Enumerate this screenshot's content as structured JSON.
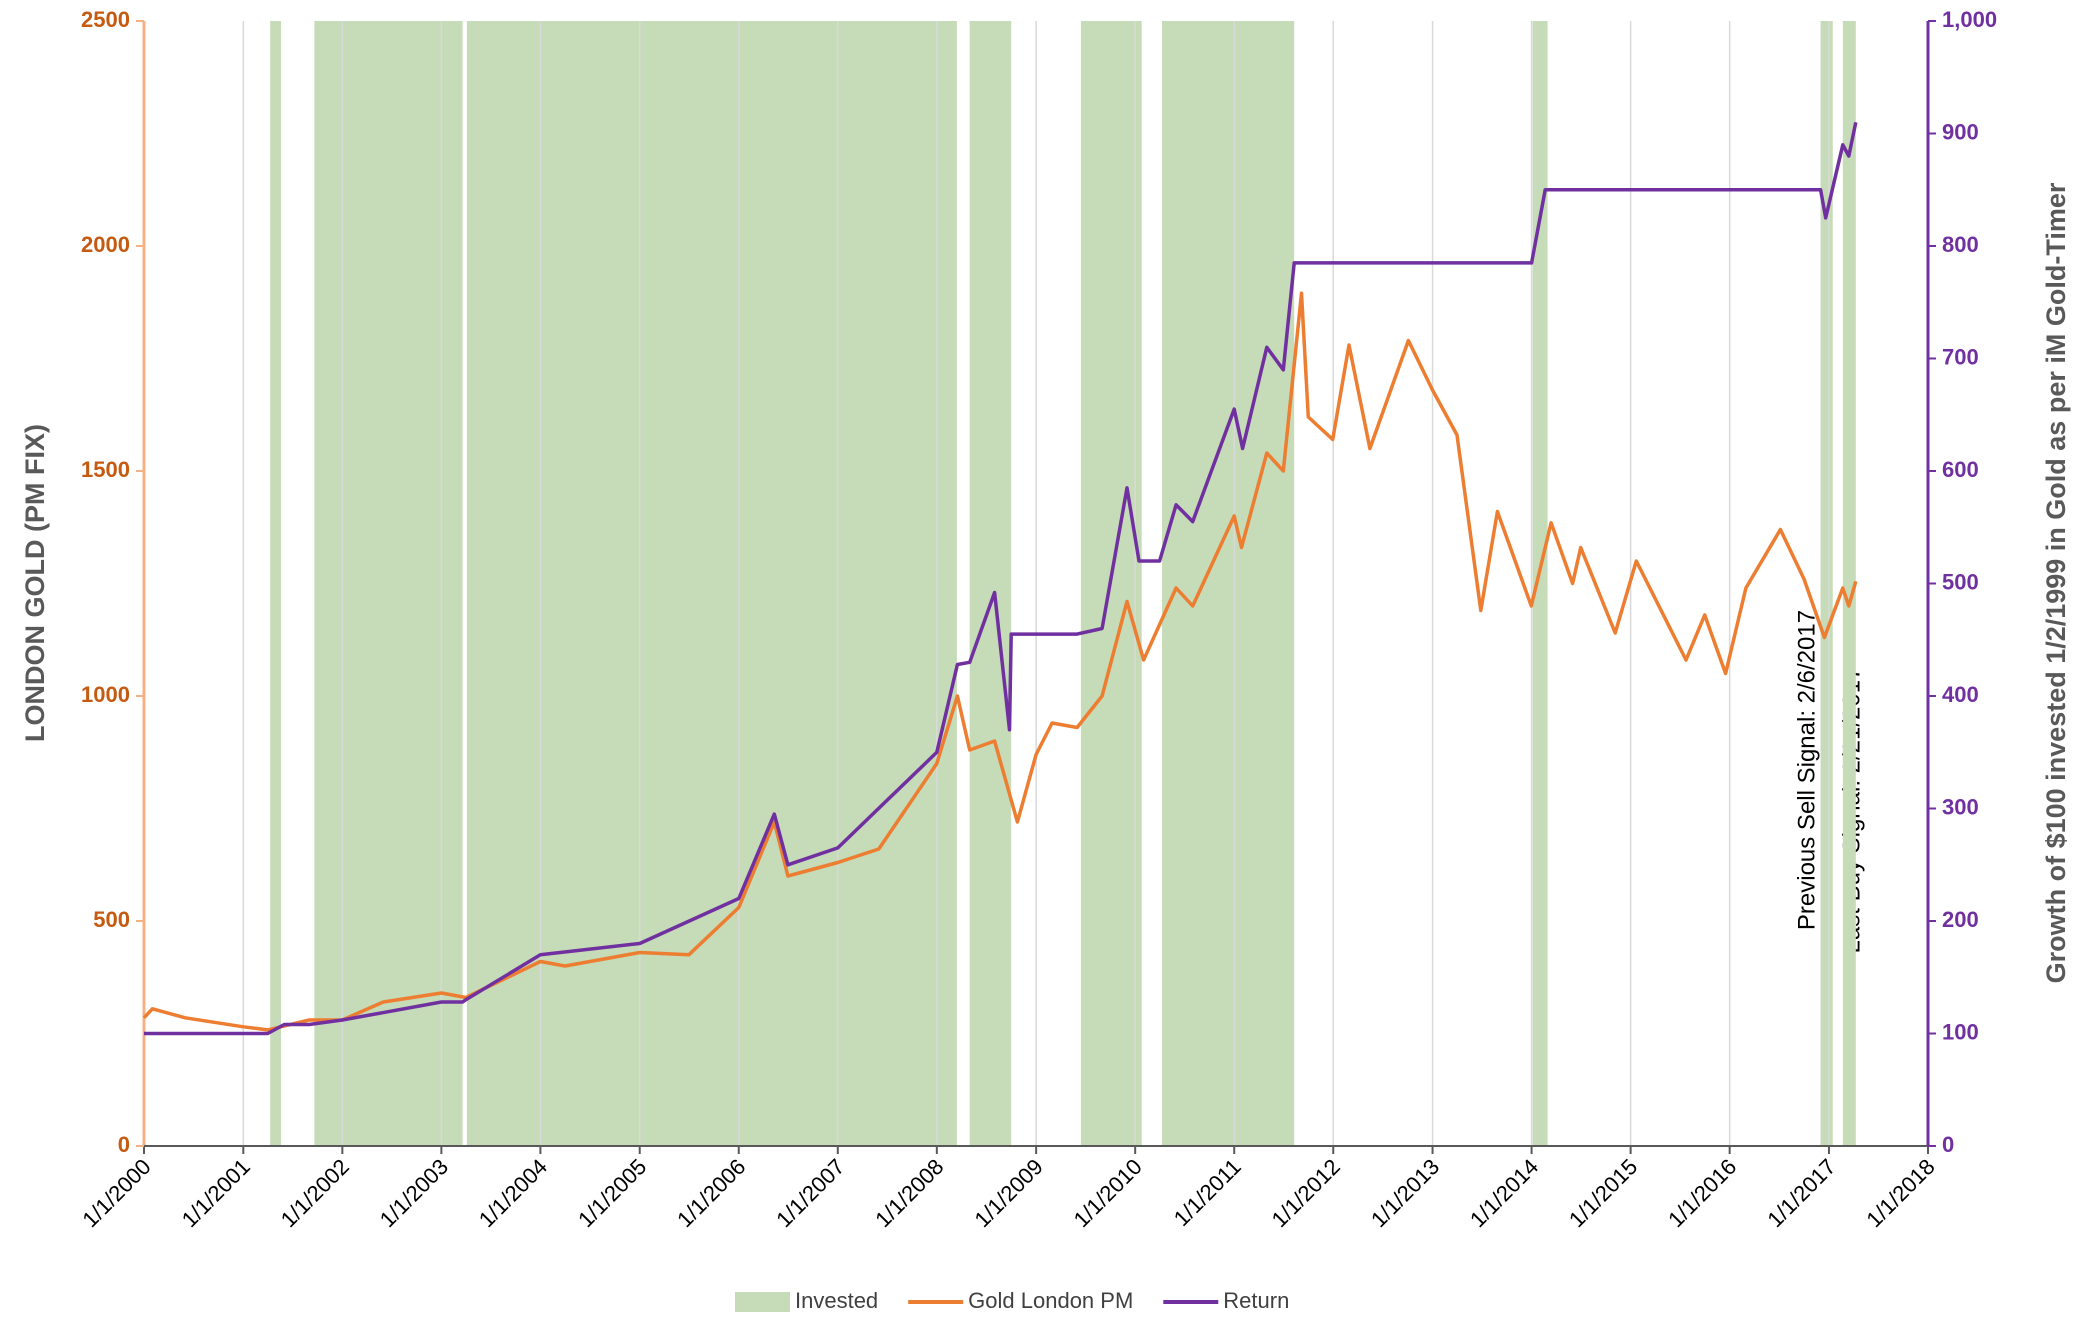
{
  "chart_data": {
    "type": "line",
    "y_axis_label": "LONDON GOLD (PM FIX)",
    "y2_axis_label": "Growth of $100 invested 1/2/1999 in Gold as per iM Gold-Timer",
    "annotations": [
      "Previous Sell Signal:  2/6/2017",
      "Last Buy Signal:  2/21/2017"
    ],
    "xlim": [
      "1/1/2000",
      "1/1/2018"
    ],
    "xticks": [
      "1/1/2000",
      "1/1/2001",
      "1/1/2002",
      "1/1/2003",
      "1/1/2004",
      "1/1/2005",
      "1/1/2006",
      "1/1/2007",
      "1/1/2008",
      "1/1/2009",
      "1/1/2010",
      "1/1/2011",
      "1/1/2012",
      "1/1/2013",
      "1/1/2014",
      "1/1/2015",
      "1/1/2016",
      "1/1/2017",
      "1/1/2018"
    ],
    "ylim": [
      0,
      2500
    ],
    "yticks": [
      0,
      500,
      1000,
      1500,
      2000,
      2500
    ],
    "y2lim": [
      0,
      1000
    ],
    "y2ticks": [
      0,
      100,
      200,
      300,
      400,
      500,
      600,
      700,
      800,
      900,
      {
        "value": 1000,
        "label": "1,000"
      }
    ],
    "grid": true,
    "legend": "bottom",
    "invested": {
      "name": "Invested",
      "color": "#c6dbb8",
      "ranges": [
        [
          "4/10/2001",
          "5/20/2001"
        ],
        [
          "9/20/2001",
          "3/20/2003"
        ],
        [
          "4/5/2003",
          "3/15/2008"
        ],
        [
          "5/1/2008",
          "10/1/2008"
        ],
        [
          "6/15/2009",
          "1/25/2010"
        ],
        [
          "4/10/2010",
          "8/10/2011"
        ],
        [
          "1/5/2014",
          "3/1/2014"
        ],
        [
          "12/1/2016",
          "1/15/2017"
        ],
        [
          "2/21/2017",
          "4/10/2017"
        ]
      ]
    },
    "series": [
      {
        "name": "Gold London PM",
        "color": "#ed7d31",
        "axis": "y",
        "x": [
          "1/1/2000",
          "2/1/2000",
          "6/1/2000",
          "1/1/2001",
          "4/1/2001",
          "9/1/2001",
          "1/1/2002",
          "6/1/2002",
          "1/1/2003",
          "4/1/2003",
          "1/1/2004",
          "4/1/2004",
          "1/1/2005",
          "7/1/2005",
          "1/1/2006",
          "5/12/2006",
          "7/1/2006",
          "1/1/2007",
          "6/1/2007",
          "1/1/2008",
          "3/17/2008",
          "5/1/2008",
          "8/1/2008",
          "10/24/2008",
          "1/1/2009",
          "3/1/2009",
          "6/1/2009",
          "9/1/2009",
          "12/2/2009",
          "2/1/2010",
          "6/1/2010",
          "8/1/2010",
          "1/1/2011",
          "1/28/2011",
          "5/1/2011",
          "7/1/2011",
          "9/6/2011",
          "10/1/2011",
          "12/30/2011",
          "2/28/2012",
          "5/15/2012",
          "10/4/2012",
          "1/1/2013",
          "4/1/2013",
          "6/28/2013",
          "8/28/2013",
          "12/31/2013",
          "3/14/2014",
          "6/1/2014",
          "7/1/2014",
          "11/5/2014",
          "1/22/2015",
          "7/24/2015",
          "10/1/2015",
          "12/17/2015",
          "3/1/2016",
          "7/6/2016",
          "10/1/2016",
          "12/15/2016",
          "2/21/2017",
          "3/15/2017",
          "4/10/2017"
        ],
        "values": [
          285,
          305,
          285,
          265,
          258,
          280,
          280,
          320,
          340,
          330,
          410,
          400,
          430,
          425,
          530,
          720,
          600,
          630,
          660,
          850,
          1000,
          880,
          900,
          720,
          870,
          940,
          930,
          1000,
          1210,
          1080,
          1240,
          1200,
          1400,
          1330,
          1540,
          1500,
          1895,
          1620,
          1570,
          1780,
          1550,
          1790,
          1680,
          1580,
          1190,
          1410,
          1200,
          1385,
          1250,
          1330,
          1140,
          1300,
          1080,
          1180,
          1050,
          1240,
          1370,
          1260,
          1130,
          1240,
          1200,
          1255
        ]
      },
      {
        "name": "Return",
        "color": "#7030a0",
        "axis": "y2",
        "x": [
          "1/1/2000",
          "4/1/2001",
          "6/1/2001",
          "9/1/2001",
          "1/1/2002",
          "1/1/2003",
          "3/20/2003",
          "4/1/2003",
          "1/1/2004",
          "1/1/2005",
          "1/1/2006",
          "5/12/2006",
          "7/1/2006",
          "1/1/2007",
          "1/1/2008",
          "3/17/2008",
          "5/1/2008",
          "8/1/2008",
          "9/25/2008",
          "10/1/2008",
          "6/1/2009",
          "9/1/2009",
          "12/2/2009",
          "1/15/2010",
          "4/1/2010",
          "6/1/2010",
          "8/1/2010",
          "1/1/2011",
          "2/1/2011",
          "5/1/2011",
          "7/1/2011",
          "8/10/2011",
          "1/1/2014",
          "2/20/2014",
          "12/1/2016",
          "12/20/2016",
          "2/21/2017",
          "3/15/2017",
          "4/10/2017"
        ],
        "values": [
          100,
          100,
          108,
          108,
          112,
          128,
          128,
          130,
          170,
          180,
          220,
          295,
          250,
          265,
          350,
          428,
          430,
          492,
          370,
          455,
          455,
          460,
          585,
          520,
          520,
          570,
          555,
          655,
          620,
          710,
          690,
          785,
          785,
          850,
          850,
          825,
          890,
          880,
          910
        ]
      }
    ]
  }
}
